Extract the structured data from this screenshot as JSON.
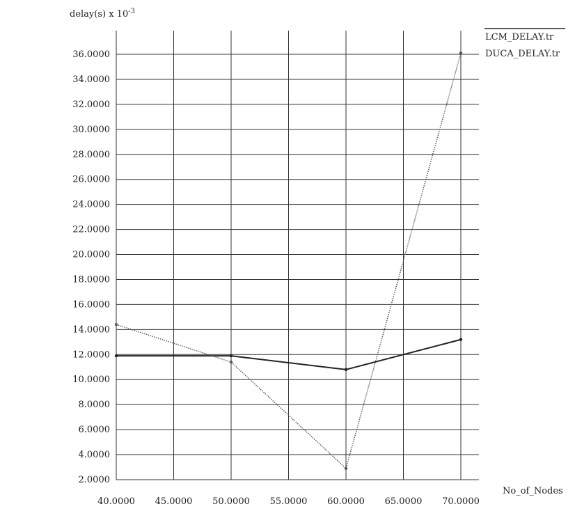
{
  "chart_data": {
    "type": "line",
    "ylabel": "delay(s) x 10",
    "ylabel_exponent": "-3",
    "xlabel": "No_of_Nodes",
    "x": [
      40,
      50,
      60,
      70
    ],
    "xlim": [
      40,
      70
    ],
    "ylim": [
      2,
      36
    ],
    "x_ticks": [
      40,
      45,
      50,
      55,
      60,
      65,
      70
    ],
    "y_ticks": [
      2,
      4,
      6,
      8,
      10,
      12,
      14,
      16,
      18,
      20,
      22,
      24,
      26,
      28,
      30,
      32,
      34,
      36
    ],
    "x_tick_labels": [
      "40.0000",
      "45.0000",
      "50.0000",
      "55.0000",
      "60.0000",
      "65.0000",
      "70.0000"
    ],
    "y_tick_labels": [
      "2.0000",
      "4.0000",
      "6.0000",
      "8.0000",
      "10.0000",
      "12.0000",
      "14.0000",
      "16.0000",
      "18.0000",
      "20.0000",
      "22.0000",
      "24.0000",
      "26.0000",
      "28.0000",
      "30.0000",
      "32.0000",
      "34.0000",
      "36.0000"
    ],
    "grid": true,
    "legend_position": "top-right",
    "series": [
      {
        "name": "LCM_DELAY.tr",
        "style": "solid",
        "color": "#222222",
        "values": [
          11.9,
          11.9,
          10.8,
          13.2
        ]
      },
      {
        "name": "DUCA_DELAY.tr",
        "style": "dotted",
        "color": "#555555",
        "values": [
          14.4,
          11.4,
          2.9,
          36.1
        ]
      }
    ]
  }
}
